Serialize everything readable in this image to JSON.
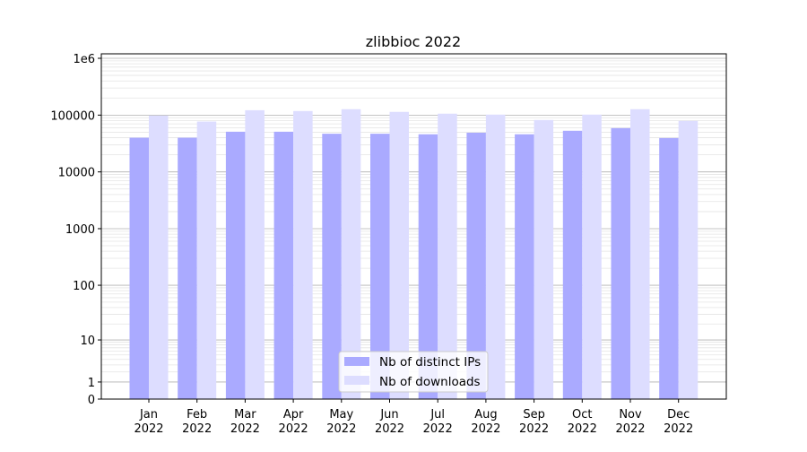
{
  "chart_data": {
    "type": "bar",
    "title": "zlibbioc 2022",
    "xlabel": "",
    "ylabel": "",
    "y_scale": "symlog (log10(1+y))",
    "ylim": [
      0,
      1200000
    ],
    "yticks": [
      {
        "value": 0,
        "label": "0"
      },
      {
        "value": 1,
        "label": "1"
      },
      {
        "value": 10,
        "label": "10"
      },
      {
        "value": 100,
        "label": "100"
      },
      {
        "value": 1000,
        "label": "1000"
      },
      {
        "value": 10000,
        "label": "10000"
      },
      {
        "value": 100000,
        "label": "100000"
      },
      {
        "value": 1000000,
        "label": "1e6"
      }
    ],
    "grid": true,
    "legend_position": "bottom-center",
    "categories": [
      "Jan\n2022",
      "Feb\n2022",
      "Mar\n2022",
      "Apr\n2022",
      "May\n2022",
      "Jun\n2022",
      "Jul\n2022",
      "Aug\n2022",
      "Sep\n2022",
      "Oct\n2022",
      "Nov\n2022",
      "Dec\n2022"
    ],
    "series": [
      {
        "name": "Nb of distinct IPs",
        "color": "#aaaaff",
        "values": [
          40000,
          40000,
          51000,
          51000,
          47000,
          47000,
          46000,
          49000,
          46000,
          53000,
          59000,
          39500
        ]
      },
      {
        "name": "Nb of downloads",
        "color": "#ddddff",
        "values": [
          98000,
          77000,
          122000,
          118000,
          127000,
          114000,
          106000,
          102000,
          82000,
          102000,
          127000,
          79000
        ]
      }
    ]
  }
}
